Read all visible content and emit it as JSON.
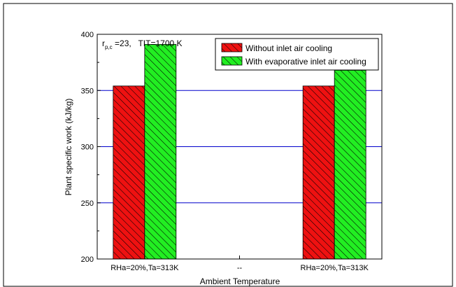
{
  "chart_data": {
    "type": "bar",
    "annotation": {
      "prefix": "r",
      "subscript": "p,c",
      "text": " =23,   TIT=1700 K"
    },
    "xlabel": "Ambient Temperature",
    "ylabel": "Plant specific work (kJ/kg)",
    "categories": [
      "RHa=20%,Ta=313K",
      "--",
      "RHa=20%,Ta=313K"
    ],
    "series": [
      {
        "name": "Without inlet air cooling",
        "values": [
          354,
          null,
          354
        ],
        "color": "#ee1111"
      },
      {
        "name": "With evaporative inlet air cooling",
        "values": [
          391,
          null,
          368
        ],
        "color": "#22ee22"
      }
    ],
    "ylim": [
      200,
      400
    ],
    "yticks": [
      200,
      250,
      300,
      350,
      400
    ],
    "grid_lines": [
      250,
      300,
      350
    ],
    "grid_color": "#0000cc",
    "bar_hatch": "diagonal",
    "legend_position": "top-right"
  }
}
